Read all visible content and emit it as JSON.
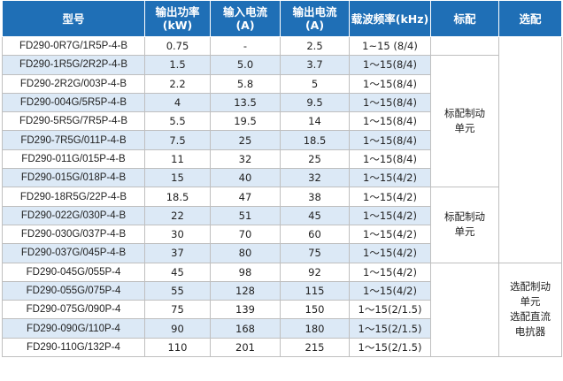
{
  "header": {
    "model": "型号",
    "power": "输出功率\n(kW)",
    "power_l1": "输出功率",
    "power_l2": "(kW)",
    "in_current_l1": "输入电流",
    "in_current_l2": "(A)",
    "out_current_l1": "输出电流",
    "out_current_l2": "(A)",
    "carrier": "载波频率(kHz)",
    "standard": "标配",
    "optional": "选配"
  },
  "rows": [
    {
      "model": "FD290-0R7G/1R5P-4-B",
      "power": "0.75",
      "in": "-",
      "out": "2.5",
      "carrier": "1~15 (8/4)"
    },
    {
      "model": "FD290-1R5G/2R2P-4-B",
      "power": "1.5",
      "in": "5.0",
      "out": "3.7",
      "carrier": "1～15(8/4)"
    },
    {
      "model": "FD290-2R2G/003P-4-B",
      "power": "2.2",
      "in": "5.8",
      "out": "5",
      "carrier": "1～15(8/4)"
    },
    {
      "model": "FD290-004G/5R5P-4-B",
      "power": "4",
      "in": "13.5",
      "out": "9.5",
      "carrier": "1～15(8/4)"
    },
    {
      "model": "FD290-5R5G/7R5P-4-B",
      "power": "5.5",
      "in": "19.5",
      "out": "14",
      "carrier": "1～15(8/4)"
    },
    {
      "model": "FD290-7R5G/011P-4-B",
      "power": "7.5",
      "in": "25",
      "out": "18.5",
      "carrier": "1～15(8/4)"
    },
    {
      "model": "FD290-011G/015P-4-B",
      "power": "11",
      "in": "32",
      "out": "25",
      "carrier": "1～15(8/4)"
    },
    {
      "model": "FD290-015G/018P-4-B",
      "power": "15",
      "in": "40",
      "out": "32",
      "carrier": "1～15(4/2)"
    },
    {
      "model": "FD290-18R5G/22P-4-B",
      "power": "18.5",
      "in": "47",
      "out": "38",
      "carrier": "1～15(4/2)"
    },
    {
      "model": "FD290-022G/030P-4-B",
      "power": "22",
      "in": "51",
      "out": "45",
      "carrier": "1～15(4/2)"
    },
    {
      "model": "FD290-030G/037P-4-B",
      "power": "30",
      "in": "70",
      "out": "60",
      "carrier": "1～15(4/2)"
    },
    {
      "model": "FD290-037G/045P-4-B",
      "power": "37",
      "in": "80",
      "out": "75",
      "carrier": "1～15(4/2)"
    },
    {
      "model": "FD290-045G/055P-4",
      "power": "45",
      "in": "98",
      "out": "92",
      "carrier": "1～15(4/2)"
    },
    {
      "model": "FD290-055G/075P-4",
      "power": "55",
      "in": "128",
      "out": "115",
      "carrier": "1～15(4/2)"
    },
    {
      "model": "FD290-075G/090P-4",
      "power": "75",
      "in": "139",
      "out": "150",
      "carrier": "1～15(2/1.5)"
    },
    {
      "model": "FD290-090G/110P-4",
      "power": "90",
      "in": "168",
      "out": "180",
      "carrier": "1～15(2/1.5)"
    },
    {
      "model": "FD290-110G/132P-4",
      "power": "110",
      "in": "201",
      "out": "215",
      "carrier": "1～15(2/1.5)"
    }
  ],
  "groups": {
    "standard_a_l1": "标配制动",
    "standard_a_l2": "单元",
    "standard_b_l1": "标配制动",
    "standard_b_l2": "单元",
    "optional_c_l1": "选配制动",
    "optional_c_l2": "单元",
    "optional_c_l3": "选配直流",
    "optional_c_l4": "电抗器"
  },
  "colors": {
    "header_bg": "#1f6fb6",
    "zebra_bg": "#dce9f6",
    "border": "#bfbfbf"
  }
}
